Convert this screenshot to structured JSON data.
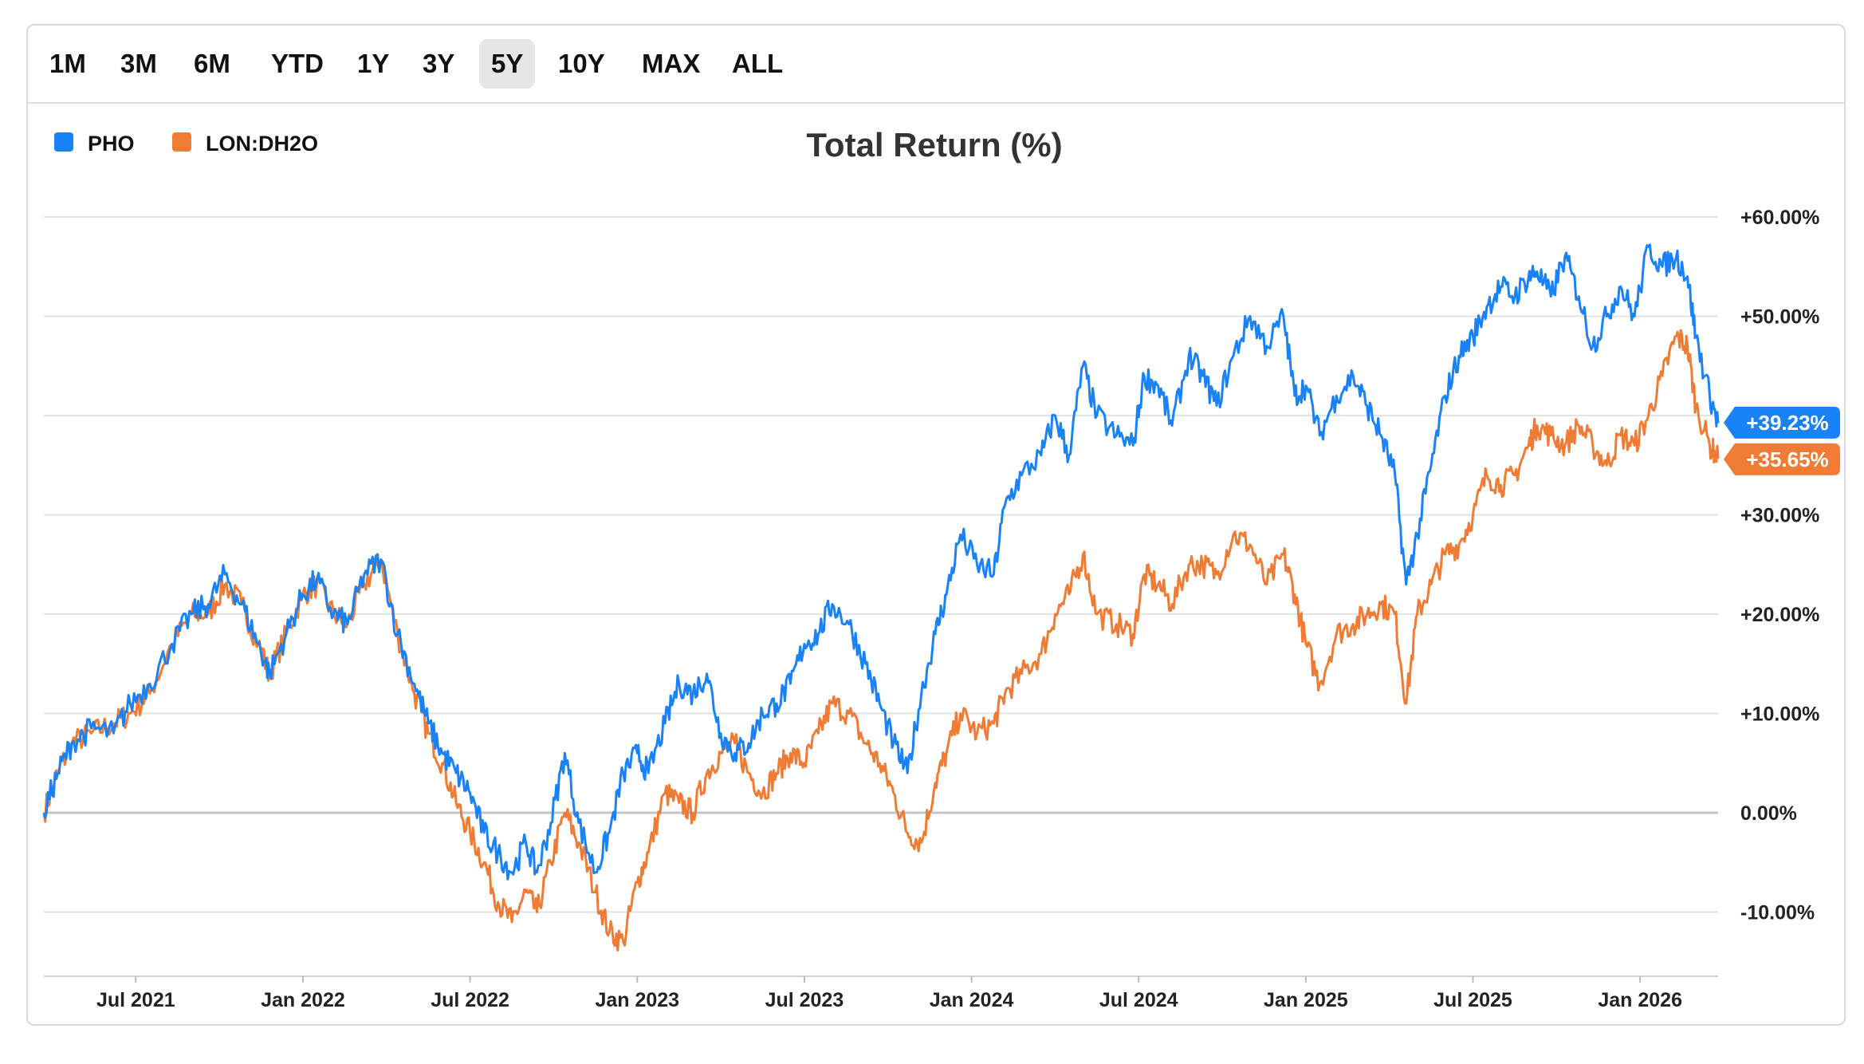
{
  "toolbar": {
    "ranges": [
      "1M",
      "3M",
      "6M",
      "YTD",
      "1Y",
      "3Y",
      "5Y",
      "10Y",
      "MAX",
      "ALL"
    ],
    "active": "5Y"
  },
  "chart_data": {
    "type": "line",
    "title": "Total Return (%)",
    "xlabel": "",
    "ylabel": "",
    "ylim": [
      -16.5,
      65
    ],
    "y_ticks": [
      60,
      50,
      40,
      30,
      20,
      10,
      0,
      -10
    ],
    "y_tick_labels": [
      "+60.00%",
      "+50.00%",
      "",
      "+30.00%",
      "+20.00%",
      "+10.00%",
      "0.00%",
      "-10.00%"
    ],
    "x_ticks": [
      "Jul 2021",
      "Jan 2022",
      "Jul 2022",
      "Jan 2023",
      "Jul 2023",
      "Jan 2024",
      "Jul 2024",
      "Jan 2025",
      "Jul 2025",
      "Jan 2026"
    ],
    "x_tick_positions_months": [
      5,
      11,
      17,
      23,
      29,
      35,
      41,
      47,
      53,
      59
    ],
    "x_range_months": [
      1.7,
      61.8
    ],
    "x_unit": "months since Jan 2021",
    "legend_position": "top-left",
    "grid": true,
    "series": [
      {
        "name": "PHO",
        "color": "#1a82f7",
        "end_label": "+39.23%",
        "points": [
          [
            1.7,
            0
          ],
          [
            2.2,
            4
          ],
          [
            2.7,
            7
          ],
          [
            3.4,
            8.5
          ],
          [
            4.2,
            8
          ],
          [
            4.8,
            11
          ],
          [
            5.5,
            13
          ],
          [
            6.3,
            17
          ],
          [
            7,
            20
          ],
          [
            7.6,
            21
          ],
          [
            8.2,
            24
          ],
          [
            8.8,
            21
          ],
          [
            9.4,
            17
          ],
          [
            9.8,
            14
          ],
          [
            10.4,
            18
          ],
          [
            11,
            22
          ],
          [
            11.5,
            23.5
          ],
          [
            12.1,
            20
          ],
          [
            12.6,
            19
          ],
          [
            13.2,
            24
          ],
          [
            13.8,
            25.5
          ],
          [
            14.4,
            18
          ],
          [
            15,
            13
          ],
          [
            15.5,
            9
          ],
          [
            16,
            6
          ],
          [
            16.5,
            4
          ],
          [
            17,
            2
          ],
          [
            17.5,
            -2
          ],
          [
            18,
            -4
          ],
          [
            18.5,
            -6
          ],
          [
            19,
            -3
          ],
          [
            19.4,
            -6
          ],
          [
            19.9,
            -1
          ],
          [
            20.4,
            6
          ],
          [
            20.9,
            -1
          ],
          [
            21.5,
            -6
          ],
          [
            22,
            -2
          ],
          [
            22.5,
            4
          ],
          [
            23,
            6
          ],
          [
            23.4,
            4
          ],
          [
            24,
            9
          ],
          [
            24.5,
            13
          ],
          [
            25,
            12
          ],
          [
            25.5,
            14
          ],
          [
            26,
            8
          ],
          [
            26.5,
            6
          ],
          [
            27,
            7
          ],
          [
            27.5,
            10
          ],
          [
            28,
            11
          ],
          [
            28.5,
            13
          ],
          [
            29,
            17
          ],
          [
            29.5,
            18
          ],
          [
            30,
            21
          ],
          [
            30.6,
            19
          ],
          [
            31.2,
            15
          ],
          [
            31.7,
            11
          ],
          [
            32.2,
            7
          ],
          [
            32.7,
            4
          ],
          [
            33.2,
            12
          ],
          [
            33.7,
            18
          ],
          [
            34.1,
            22
          ],
          [
            34.6,
            28
          ],
          [
            35.2,
            25
          ],
          [
            35.8,
            24
          ],
          [
            36.2,
            31
          ],
          [
            36.8,
            34
          ],
          [
            37.5,
            36
          ],
          [
            38,
            40
          ],
          [
            38.5,
            36
          ],
          [
            39,
            45
          ],
          [
            39.5,
            40
          ],
          [
            40.2,
            38
          ],
          [
            40.8,
            37
          ],
          [
            41.2,
            44
          ],
          [
            41.7,
            43
          ],
          [
            42.2,
            39
          ],
          [
            42.8,
            46
          ],
          [
            43.3,
            44
          ],
          [
            43.8,
            41
          ],
          [
            44.4,
            46
          ],
          [
            45,
            50
          ],
          [
            45.6,
            47
          ],
          [
            46.2,
            50
          ],
          [
            46.6,
            42
          ],
          [
            47,
            43
          ],
          [
            47.5,
            38
          ],
          [
            48.1,
            42
          ],
          [
            48.7,
            44
          ],
          [
            49.2,
            41
          ],
          [
            49.7,
            38
          ],
          [
            50.2,
            34
          ],
          [
            50.6,
            23
          ],
          [
            51,
            28
          ],
          [
            51.5,
            35
          ],
          [
            52,
            42
          ],
          [
            52.5,
            46
          ],
          [
            53,
            48
          ],
          [
            53.5,
            51
          ],
          [
            54,
            53
          ],
          [
            54.5,
            52
          ],
          [
            55,
            54
          ],
          [
            55.3,
            54.5
          ],
          [
            55.8,
            52
          ],
          [
            56.3,
            56
          ],
          [
            56.8,
            52
          ],
          [
            57.3,
            47
          ],
          [
            57.8,
            50
          ],
          [
            58.3,
            53
          ],
          [
            58.8,
            50
          ],
          [
            59.3,
            57
          ],
          [
            59.8,
            55
          ],
          [
            60.3,
            56
          ],
          [
            60.7,
            54
          ],
          [
            61,
            48
          ],
          [
            61.5,
            42
          ],
          [
            61.8,
            39.23
          ]
        ]
      },
      {
        "name": "LON:DH2O",
        "color": "#f07b34",
        "end_label": "+35.65%",
        "points": [
          [
            1.7,
            0
          ],
          [
            2.2,
            4
          ],
          [
            2.7,
            7
          ],
          [
            3.4,
            8
          ],
          [
            4.2,
            9
          ],
          [
            4.8,
            10
          ],
          [
            5.5,
            12
          ],
          [
            6.3,
            17
          ],
          [
            7,
            20
          ],
          [
            7.6,
            20
          ],
          [
            8.2,
            23
          ],
          [
            8.8,
            21
          ],
          [
            9.4,
            17
          ],
          [
            9.8,
            14
          ],
          [
            10.4,
            18
          ],
          [
            11,
            22
          ],
          [
            11.5,
            23
          ],
          [
            12.1,
            20
          ],
          [
            12.6,
            19
          ],
          [
            13.2,
            23
          ],
          [
            13.8,
            25.5
          ],
          [
            14.4,
            18
          ],
          [
            15,
            12
          ],
          [
            15.5,
            8
          ],
          [
            16,
            5
          ],
          [
            16.5,
            1
          ],
          [
            17,
            -2
          ],
          [
            17.5,
            -5
          ],
          [
            18,
            -9
          ],
          [
            18.5,
            -11
          ],
          [
            19,
            -8
          ],
          [
            19.4,
            -10
          ],
          [
            19.9,
            -5
          ],
          [
            20.4,
            0
          ],
          [
            20.9,
            -3
          ],
          [
            21.5,
            -8
          ],
          [
            22,
            -12
          ],
          [
            22.5,
            -13
          ],
          [
            23,
            -7
          ],
          [
            23.4,
            -4
          ],
          [
            24,
            2
          ],
          [
            24.5,
            1
          ],
          [
            25,
            0
          ],
          [
            25.5,
            4
          ],
          [
            26,
            6
          ],
          [
            26.5,
            7
          ],
          [
            27,
            4
          ],
          [
            27.5,
            2
          ],
          [
            28,
            4
          ],
          [
            28.5,
            6
          ],
          [
            29,
            5
          ],
          [
            29.5,
            8
          ],
          [
            30,
            11
          ],
          [
            30.6,
            10
          ],
          [
            31.2,
            7
          ],
          [
            31.7,
            5
          ],
          [
            32.2,
            2
          ],
          [
            32.7,
            -2
          ],
          [
            33.2,
            -3
          ],
          [
            33.7,
            3
          ],
          [
            34.1,
            6
          ],
          [
            34.6,
            10
          ],
          [
            35.2,
            8
          ],
          [
            35.8,
            9
          ],
          [
            36.2,
            12
          ],
          [
            36.8,
            14
          ],
          [
            37.5,
            16
          ],
          [
            38,
            20
          ],
          [
            38.5,
            22
          ],
          [
            39,
            26
          ],
          [
            39.5,
            20
          ],
          [
            40.2,
            19
          ],
          [
            40.8,
            18
          ],
          [
            41.2,
            24
          ],
          [
            41.7,
            23
          ],
          [
            42.2,
            21
          ],
          [
            42.8,
            25
          ],
          [
            43.3,
            25
          ],
          [
            43.8,
            24
          ],
          [
            44.4,
            28
          ],
          [
            45,
            27
          ],
          [
            45.6,
            23
          ],
          [
            46.2,
            26
          ],
          [
            46.6,
            22
          ],
          [
            47,
            17
          ],
          [
            47.5,
            13
          ],
          [
            48.1,
            18
          ],
          [
            48.7,
            19
          ],
          [
            49.2,
            20
          ],
          [
            49.7,
            21
          ],
          [
            50.2,
            20
          ],
          [
            50.6,
            11
          ],
          [
            51,
            20
          ],
          [
            51.5,
            23
          ],
          [
            52,
            26
          ],
          [
            52.5,
            27
          ],
          [
            53,
            30
          ],
          [
            53.5,
            34
          ],
          [
            54,
            33
          ],
          [
            54.5,
            34
          ],
          [
            55,
            37
          ],
          [
            55.3,
            39
          ],
          [
            55.8,
            38
          ],
          [
            56.3,
            37
          ],
          [
            56.8,
            39
          ],
          [
            57.3,
            37
          ],
          [
            57.8,
            35
          ],
          [
            58.3,
            38
          ],
          [
            58.8,
            37
          ],
          [
            59.3,
            40
          ],
          [
            59.8,
            44
          ],
          [
            60.3,
            48
          ],
          [
            60.7,
            47
          ],
          [
            61,
            41
          ],
          [
            61.5,
            37
          ],
          [
            61.8,
            35.65
          ]
        ]
      }
    ]
  }
}
